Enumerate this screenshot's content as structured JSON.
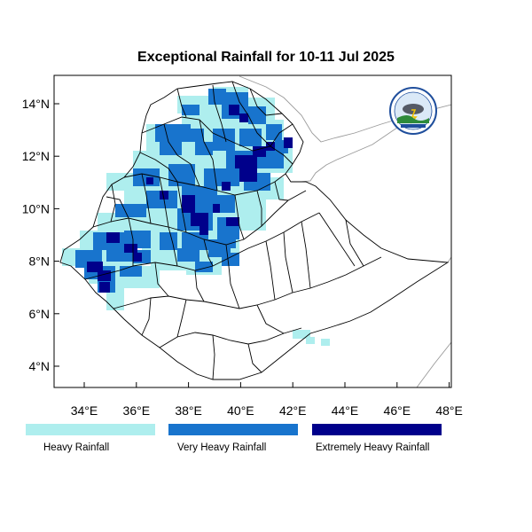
{
  "title": "Exceptional Rainfall for 10-11 Jul 2025",
  "lat_ticks": [
    "14°N",
    "12°N",
    "10°N",
    "8°N",
    "6°N",
    "4°N"
  ],
  "lon_ticks": [
    "34°E",
    "36°E",
    "38°E",
    "40°E",
    "42°E",
    "44°E",
    "46°E",
    "48°E"
  ],
  "lat_values": [
    14,
    12,
    10,
    8,
    6,
    4
  ],
  "lon_values": [
    34,
    36,
    38,
    40,
    42,
    44,
    46,
    48
  ],
  "extent": {
    "lon": [
      32.9,
      48.2
    ],
    "lat": [
      3.3,
      15.0
    ]
  },
  "legend": [
    {
      "label": "Heavy Rainfall",
      "color": "#aeeeee"
    },
    {
      "label": "Very Heavy Rainfall",
      "color": "#1874cd"
    },
    {
      "label": "Extremely Heavy Rainfall",
      "color": "#00008b"
    }
  ],
  "colors": {
    "heavy": "#aeeeee",
    "very_heavy": "#1874cd",
    "extreme": "#00008b",
    "border": "#000000",
    "neighbor": "#999999"
  },
  "logo": {
    "text": "Ethiopian Meteorology Institute",
    "icon": "weather-logo-icon"
  }
}
